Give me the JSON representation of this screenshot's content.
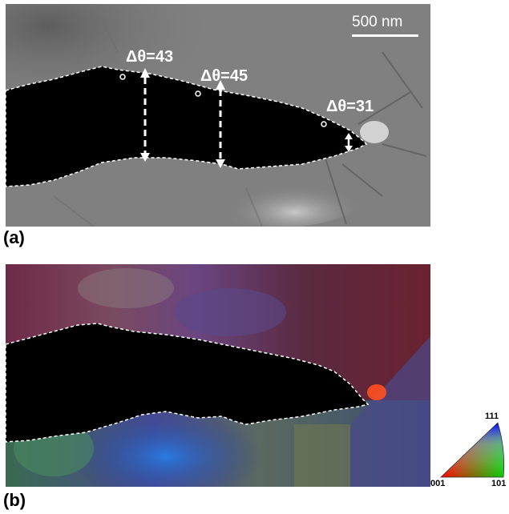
{
  "panel_a": {
    "label": "(a)",
    "scale_bar_text": "500 nm",
    "misorientations": [
      {
        "label": "Δθ=43"
      },
      {
        "label": "Δθ=45"
      },
      {
        "label": "Δθ=31"
      }
    ]
  },
  "panel_b": {
    "label": "(b)",
    "legend": {
      "top_label": "111",
      "left_label": "001",
      "right_label": "101",
      "corner_colors": {
        "001": "#ff0000",
        "101": "#00cc00",
        "111": "#0000ff"
      }
    }
  },
  "colors": {
    "background": "#ffffff",
    "crack": "#000000",
    "sem_gray": "#7d7d7d",
    "annotation": "#ffffff"
  }
}
